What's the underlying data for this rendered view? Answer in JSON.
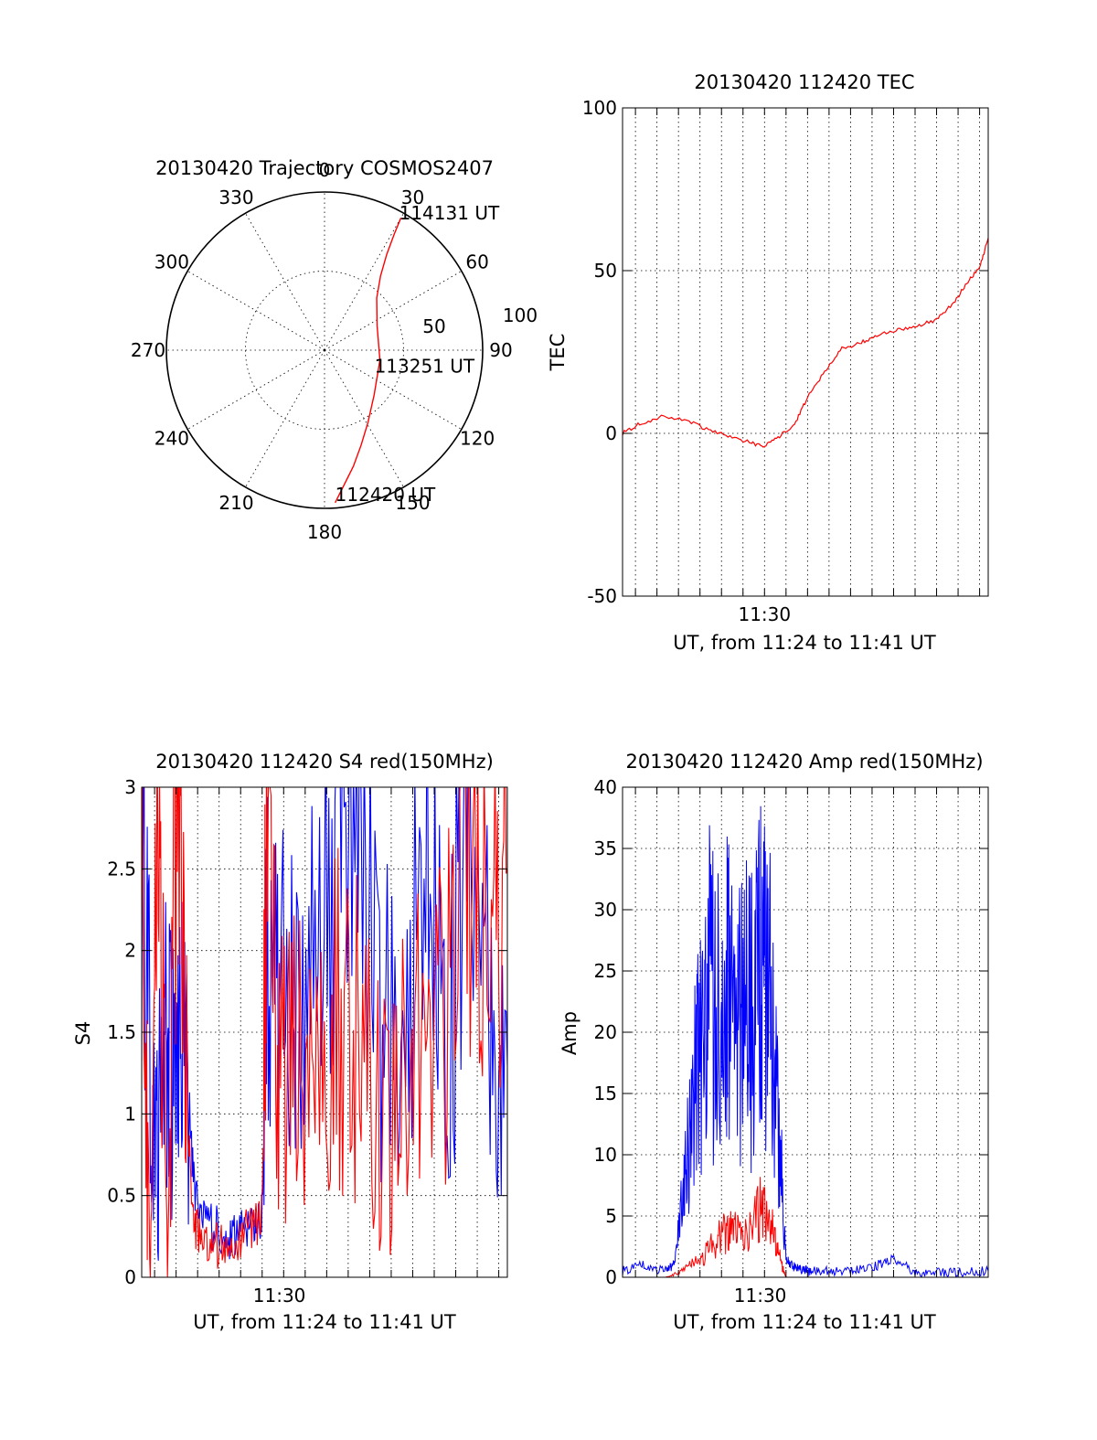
{
  "chart_data": [
    {
      "type": "polar",
      "title": "20130420 Trajectory COSMOS2407",
      "angle_labels": [
        "0",
        "30",
        "60",
        "90",
        "120",
        "150",
        "180",
        "210",
        "240",
        "270",
        "300",
        "330"
      ],
      "radial_labels": [
        "50",
        "100"
      ],
      "series": [
        {
          "color": "#ff0000",
          "azimuth_elevation": [
            [
              176,
              3
            ],
            [
              172,
              12
            ],
            [
              166,
              22
            ],
            [
              159,
              32
            ],
            [
              149,
              42
            ],
            [
              132,
              52
            ],
            [
              100,
              58
            ],
            [
              65,
              57
            ],
            [
              45,
              48
            ],
            [
              37,
              37
            ],
            [
              33,
              25
            ],
            [
              31,
              13
            ],
            [
              30,
              3
            ]
          ]
        }
      ],
      "annotations": [
        {
          "text": "114131 UT",
          "azimuth": 30,
          "elevation": 3
        },
        {
          "text": "113251 UT",
          "azimuth": 100,
          "elevation": 58
        },
        {
          "text": "112420 UT",
          "azimuth": 176,
          "elevation": 3
        }
      ]
    },
    {
      "type": "line",
      "title": "20130420 112420 TEC",
      "xlabel": "UT, from 11:24 to 11:41 UT",
      "ylabel": "TEC",
      "x_range_min": [
        11.4,
        28.4
      ],
      "x_tick_labels": [
        {
          "x": 18.0,
          "label": "11:30"
        }
      ],
      "ylim": [
        -50,
        100
      ],
      "y_ticks": [
        -50,
        0,
        50,
        100
      ],
      "grid": true,
      "series": [
        {
          "color": "#ff0000",
          "x": [
            11.4,
            12.2,
            13.2,
            14.4,
            15.4,
            16.4,
            17.4,
            18.0,
            18.7,
            19.4,
            20.0,
            20.8,
            21.6,
            22.5,
            23.3,
            24.2,
            25.1,
            26.0,
            26.8,
            27.4,
            28.0,
            28.4
          ],
          "y": [
            0,
            3,
            5,
            4,
            1,
            -1,
            -3,
            -4,
            -1,
            3,
            11,
            19,
            26,
            28,
            30,
            32,
            33,
            35,
            40,
            46,
            51,
            60
          ]
        }
      ]
    },
    {
      "type": "line",
      "title": "20130420 112420 S4 red(150MHz)",
      "xlabel": "UT, from 11:24 to 11:41 UT",
      "ylabel": "S4",
      "x_range_min": [
        11.4,
        28.4
      ],
      "x_tick_labels": [
        {
          "x": 17.8,
          "label": "11:30"
        }
      ],
      "ylim": [
        0,
        3
      ],
      "y_ticks": [
        "0",
        "0.5",
        "1",
        "1.5",
        "2",
        "2.5",
        "3"
      ],
      "grid": true,
      "series": [
        {
          "color": "#0000ff",
          "x": [
            11.4,
            11.8,
            12.2,
            12.6,
            13.0,
            13.4,
            13.8,
            14.2,
            14.8,
            15.4,
            16.0,
            16.6,
            17.0,
            17.2,
            17.8,
            18.6,
            19.6,
            20.6,
            21.6,
            22.6,
            23.6,
            24.6,
            25.6,
            26.6,
            27.6,
            28.4
          ],
          "y": [
            2.7,
            1.3,
            1.0,
            1.4,
            1.2,
            1.5,
            0.6,
            0.35,
            0.3,
            0.25,
            0.28,
            0.3,
            0.35,
            2.0,
            1.6,
            1.9,
            2.2,
            2.8,
            2.4,
            1.6,
            1.4,
            2.8,
            1.2,
            3.0,
            1.5,
            1.3
          ]
        },
        {
          "color": "#ff0000",
          "x": [
            11.4,
            11.8,
            12.2,
            12.6,
            13.0,
            13.4,
            13.8,
            14.2,
            14.8,
            15.4,
            16.0,
            16.6,
            17.0,
            17.2,
            17.8,
            18.6,
            19.6,
            20.6,
            21.6,
            22.6,
            23.6,
            24.6,
            25.6,
            26.6,
            27.6,
            28.4
          ],
          "y": [
            3.0,
            0.0,
            3.0,
            0.0,
            3.0,
            1.4,
            0.3,
            0.25,
            0.2,
            0.2,
            0.25,
            0.3,
            0.4,
            2.7,
            1.2,
            1.5,
            1.3,
            1.6,
            1.4,
            1.0,
            1.2,
            1.5,
            1.7,
            2.5,
            1.9,
            2.5
          ]
        }
      ]
    },
    {
      "type": "line",
      "title": "20130420 112420 Amp red(150MHz)",
      "xlabel": "UT, from 11:24 to 11:41 UT",
      "ylabel": "Amp",
      "x_range_min": [
        11.4,
        28.4
      ],
      "x_tick_labels": [
        {
          "x": 17.8,
          "label": "11:30"
        }
      ],
      "ylim": [
        0,
        40
      ],
      "y_ticks": [
        0,
        5,
        10,
        15,
        20,
        25,
        30,
        35,
        40
      ],
      "grid": true,
      "series": [
        {
          "color": "#0000ff",
          "x": [
            11.4,
            12.4,
            13.4,
            13.8,
            14.2,
            14.6,
            15.0,
            15.4,
            15.8,
            16.2,
            16.6,
            17.0,
            17.4,
            17.8,
            18.2,
            18.6,
            19.0,
            19.4,
            19.8,
            20.2,
            21.0,
            22.0,
            23.0,
            24.0,
            25.0,
            26.0,
            27.0,
            28.4
          ],
          "y": [
            0.5,
            1.0,
            0.5,
            1.0,
            6.0,
            13.0,
            18.0,
            25.0,
            20.0,
            28.0,
            17.0,
            24.0,
            21.0,
            26.0,
            23.0,
            16.0,
            1.5,
            0.8,
            0.6,
            0.5,
            0.5,
            0.5,
            0.8,
            1.5,
            0.4,
            0.4,
            0.4,
            0.5
          ]
        },
        {
          "color": "#ff0000",
          "x": [
            13.4,
            14.2,
            15.0,
            15.8,
            16.4,
            17.0,
            17.8,
            18.4,
            18.8,
            19.0
          ],
          "y": [
            0.0,
            0.5,
            1.5,
            3.0,
            4.0,
            3.0,
            5.5,
            4.0,
            1.0,
            0.0
          ]
        }
      ]
    }
  ]
}
